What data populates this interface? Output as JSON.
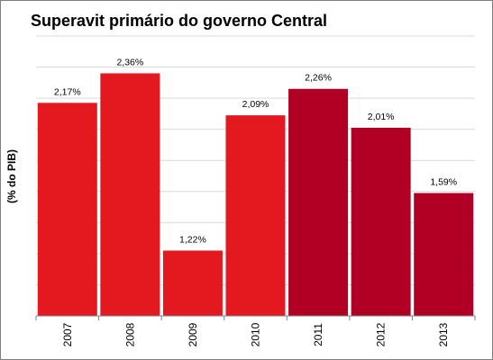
{
  "chart_data": {
    "type": "bar",
    "title": "Superavit primário do governo Central",
    "ylabel": "(% do PIB)",
    "xlabel": "",
    "categories": [
      "2007",
      "2008",
      "2009",
      "2010",
      "2011",
      "2012",
      "2013"
    ],
    "values": [
      2.17,
      2.36,
      1.22,
      2.09,
      2.26,
      2.01,
      1.59
    ],
    "value_labels": [
      "2,17%",
      "2,36%",
      "1,22%",
      "2,09%",
      "2,26%",
      "2,01%",
      "1,59%"
    ],
    "ylim": [
      0.8,
      2.6
    ],
    "grid": true,
    "legend": "none",
    "colors": {
      "bar_light": "#e3191f",
      "bar_dark": "#b00024",
      "grid": "#d9d9d9",
      "axis": "#7f7f7f"
    },
    "bar_color_keys": [
      "bar_light",
      "bar_light",
      "bar_light",
      "bar_light",
      "bar_dark",
      "bar_dark",
      "bar_dark"
    ]
  }
}
